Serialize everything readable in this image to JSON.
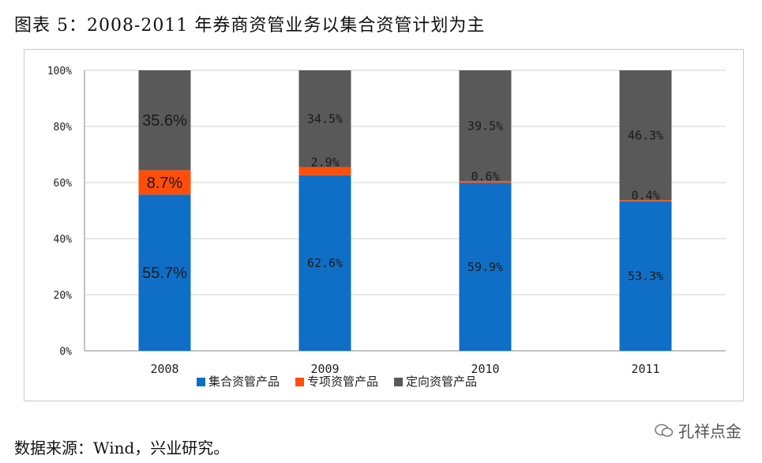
{
  "figure": {
    "title": "图表 5：2008-2011 年券商资管业务以集合资管计划为主",
    "source": "数据来源：Wind，兴业研究。",
    "watermark": "孔祥点金"
  },
  "chart_data": {
    "type": "bar",
    "stacked": true,
    "categories": [
      "2008",
      "2009",
      "2010",
      "2011"
    ],
    "series": [
      {
        "name": "集合资管产品",
        "color": "#0f6fc6",
        "values": [
          55.7,
          62.6,
          59.9,
          53.3
        ],
        "labels": [
          "55.7%",
          "62.6%",
          "59.9%",
          "53.3%"
        ]
      },
      {
        "name": "专项资管产品",
        "color": "#ff4e0a",
        "values": [
          8.7,
          2.9,
          0.6,
          0.4
        ],
        "labels": [
          "8.7%",
          "2.9%",
          "0.6%",
          "0.4%"
        ]
      },
      {
        "name": "定向资管产品",
        "color": "#595959",
        "values": [
          35.6,
          34.5,
          39.5,
          46.3
        ],
        "labels": [
          "35.6%",
          "34.5%",
          "39.5%",
          "46.3%"
        ]
      }
    ],
    "yticks": [
      "0%",
      "20%",
      "40%",
      "60%",
      "80%",
      "100%"
    ],
    "ylim": [
      0,
      100
    ],
    "grid": true,
    "legend": "bottom"
  }
}
